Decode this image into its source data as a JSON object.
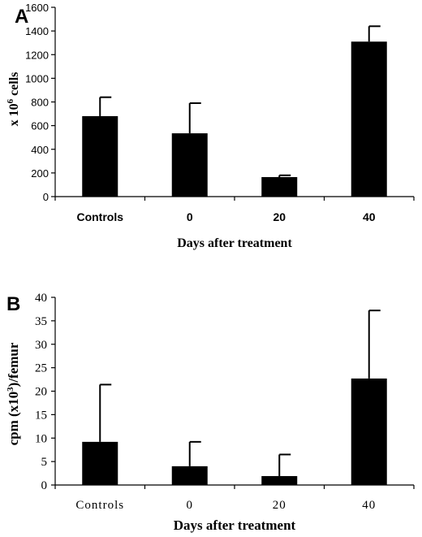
{
  "chart_data": [
    {
      "panel_label": "A",
      "type": "bar",
      "categories": [
        "Controls",
        "0",
        "20",
        "40"
      ],
      "values": [
        680,
        535,
        165,
        1310
      ],
      "errors": [
        160,
        255,
        15,
        130
      ],
      "xlabel": "Days after treatment",
      "ylabel_prefix": "x 10",
      "ylabel_sup": "6",
      "ylabel_suffix": " cells",
      "ylim": [
        0,
        1600
      ],
      "yticks": [
        0,
        200,
        400,
        600,
        800,
        1000,
        1200,
        1400,
        1600
      ],
      "grid": false,
      "bar_color": "#000000"
    },
    {
      "panel_label": "B",
      "type": "bar",
      "categories": [
        "Controls",
        "0",
        "20",
        "40"
      ],
      "values": [
        9.2,
        4.0,
        1.9,
        22.7
      ],
      "errors": [
        12.2,
        5.2,
        4.6,
        14.5
      ],
      "xlabel": "Days after treatment",
      "ylabel_prefix": "cpm (x10",
      "ylabel_sup": "3",
      "ylabel_suffix": ")/femur",
      "ylim": [
        0,
        40
      ],
      "yticks": [
        0,
        5,
        10,
        15,
        20,
        25,
        30,
        35,
        40
      ],
      "grid": false,
      "bar_color": "#000000"
    }
  ]
}
